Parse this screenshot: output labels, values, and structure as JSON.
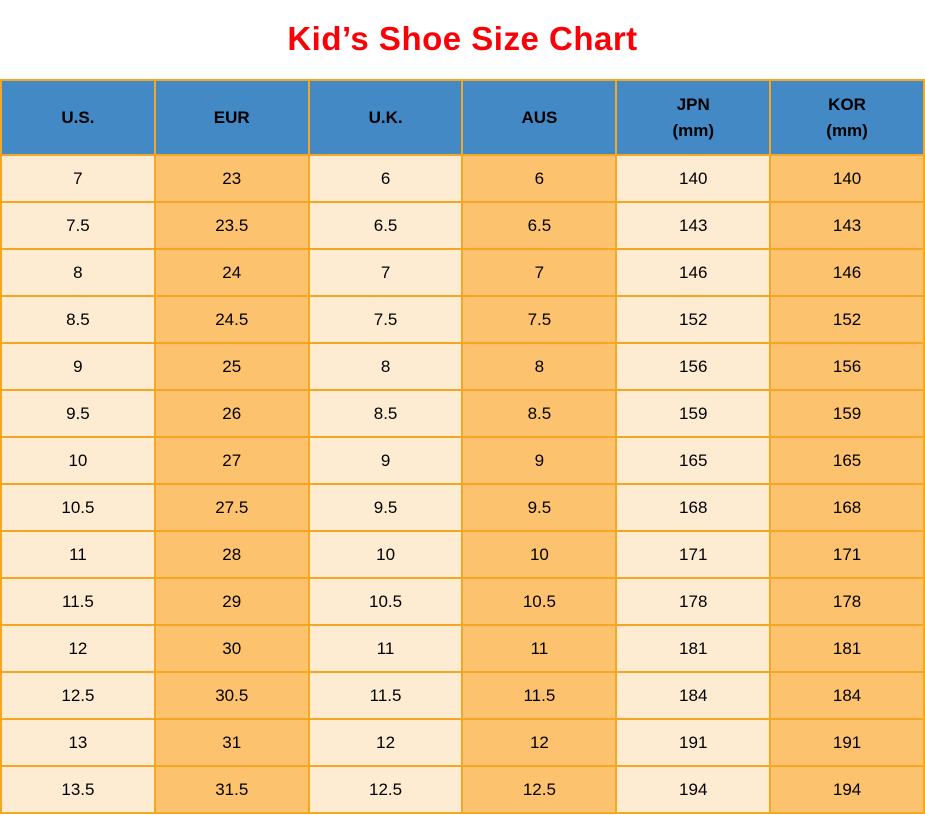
{
  "title": "Kid’s Shoe Size Chart",
  "colors": {
    "title_red": "#fb0006",
    "header_blue": "#4289c6",
    "cell_cream": "#fdebd2",
    "cell_orange": "#fdc26d",
    "border_orange": "#f5a623",
    "text": "#000000"
  },
  "table": {
    "columns": [
      {
        "label": "U.S.",
        "sub": ""
      },
      {
        "label": "EUR",
        "sub": ""
      },
      {
        "label": "U.K.",
        "sub": ""
      },
      {
        "label": "AUS",
        "sub": ""
      },
      {
        "label": "JPN",
        "sub": "(mm)"
      },
      {
        "label": "KOR",
        "sub": "(mm)"
      }
    ],
    "rows": [
      [
        "7",
        "23",
        "6",
        "6",
        "140",
        "140"
      ],
      [
        "7.5",
        "23.5",
        "6.5",
        "6.5",
        "143",
        "143"
      ],
      [
        "8",
        "24",
        "7",
        "7",
        "146",
        "146"
      ],
      [
        "8.5",
        "24.5",
        "7.5",
        "7.5",
        "152",
        "152"
      ],
      [
        "9",
        "25",
        "8",
        "8",
        "156",
        "156"
      ],
      [
        "9.5",
        "26",
        "8.5",
        "8.5",
        "159",
        "159"
      ],
      [
        "10",
        "27",
        "9",
        "9",
        "165",
        "165"
      ],
      [
        "10.5",
        "27.5",
        "9.5",
        "9.5",
        "168",
        "168"
      ],
      [
        "11",
        "28",
        "10",
        "10",
        "171",
        "171"
      ],
      [
        "11.5",
        "29",
        "10.5",
        "10.5",
        "178",
        "178"
      ],
      [
        "12",
        "30",
        "11",
        "11",
        "181",
        "181"
      ],
      [
        "12.5",
        "30.5",
        "11.5",
        "11.5",
        "184",
        "184"
      ],
      [
        "13",
        "31",
        "12",
        "12",
        "191",
        "191"
      ],
      [
        "13.5",
        "31.5",
        "12.5",
        "12.5",
        "194",
        "194"
      ]
    ]
  },
  "chart_data": {
    "type": "table",
    "title": "Kid’s Shoe Size Chart",
    "columns": [
      "U.S.",
      "EUR",
      "U.K.",
      "AUS",
      "JPN (mm)",
      "KOR (mm)"
    ],
    "rows": [
      [
        "7",
        "23",
        "6",
        "6",
        "140",
        "140"
      ],
      [
        "7.5",
        "23.5",
        "6.5",
        "6.5",
        "143",
        "143"
      ],
      [
        "8",
        "24",
        "7",
        "7",
        "146",
        "146"
      ],
      [
        "8.5",
        "24.5",
        "7.5",
        "7.5",
        "152",
        "152"
      ],
      [
        "9",
        "25",
        "8",
        "8",
        "156",
        "156"
      ],
      [
        "9.5",
        "26",
        "8.5",
        "8.5",
        "159",
        "159"
      ],
      [
        "10",
        "27",
        "9",
        "9",
        "165",
        "165"
      ],
      [
        "10.5",
        "27.5",
        "9.5",
        "9.5",
        "168",
        "168"
      ],
      [
        "11",
        "28",
        "10",
        "10",
        "171",
        "171"
      ],
      [
        "11.5",
        "29",
        "10.5",
        "10.5",
        "178",
        "178"
      ],
      [
        "12",
        "30",
        "11",
        "11",
        "181",
        "181"
      ],
      [
        "12.5",
        "30.5",
        "11.5",
        "11.5",
        "184",
        "184"
      ],
      [
        "13",
        "31",
        "12",
        "12",
        "191",
        "191"
      ],
      [
        "13.5",
        "31.5",
        "12.5",
        "12.5",
        "194",
        "194"
      ]
    ],
    "layout_hints": {
      "column_stripes": [
        "cream",
        "orange",
        "cream",
        "orange",
        "cream",
        "orange"
      ],
      "header_background": "#4289c6",
      "grid": true
    }
  }
}
